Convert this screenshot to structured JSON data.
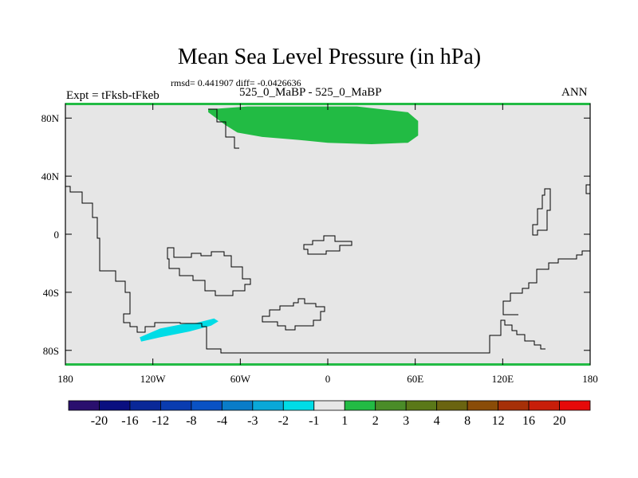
{
  "header": {
    "title": "Mean Sea Level Pressure (in hPa)",
    "stats": "rmsd= 0.441907 diff= -0.0426636",
    "experiment": "Expt = tFksb-tFkeb",
    "subtitle": "525_0_MaBP - 525_0_MaBP",
    "period": "ANN"
  },
  "axes": {
    "x_ticks": [
      {
        "lon": -180,
        "label": "180"
      },
      {
        "lon": -120,
        "label": "120W"
      },
      {
        "lon": -60,
        "label": "60W"
      },
      {
        "lon": 0,
        "label": "0"
      },
      {
        "lon": 60,
        "label": "60E"
      },
      {
        "lon": 120,
        "label": "120E"
      },
      {
        "lon": 180,
        "label": "180"
      }
    ],
    "y_ticks": [
      {
        "lat": 80,
        "label": "80N"
      },
      {
        "lat": 40,
        "label": "40N"
      },
      {
        "lat": 0,
        "label": "0"
      },
      {
        "lat": -40,
        "label": "40S"
      },
      {
        "lat": -80,
        "label": "80S"
      }
    ],
    "lon_range": [
      -180,
      180
    ],
    "lat_range": [
      -90,
      90
    ]
  },
  "colorbar": {
    "labels": [
      "-20",
      "-16",
      "-12",
      "-8",
      "-4",
      "-3",
      "-2",
      "-1",
      "1",
      "2",
      "3",
      "4",
      "8",
      "12",
      "16",
      "20"
    ],
    "colors": [
      "#2a0f6e",
      "#0a0f80",
      "#0a2898",
      "#0a3cb0",
      "#0a52c4",
      "#0a7cc8",
      "#0aa8d8",
      "#00dce6",
      "#e6e6e6",
      "#22bb44",
      "#4a8c28",
      "#5a7818",
      "#6a6410",
      "#8a4c08",
      "#a63008",
      "#c81e0a",
      "#e60a0a"
    ]
  },
  "chart_data": {
    "type": "map",
    "variable": "Mean Sea Level Pressure difference (hPa)",
    "background_level": "-1 to 1",
    "anomalies": [
      {
        "name": "positive-anomaly",
        "bin": "1 to 2",
        "color": "#22bb44",
        "region": "Arctic, approx. 100W-60E, 65N-87N",
        "polygon": [
          [
            -82,
            86
          ],
          [
            -55,
            88
          ],
          [
            20,
            88
          ],
          [
            55,
            84
          ],
          [
            62,
            78
          ],
          [
            62,
            68
          ],
          [
            55,
            63
          ],
          [
            30,
            62
          ],
          [
            0,
            63
          ],
          [
            -20,
            65
          ],
          [
            -45,
            67
          ],
          [
            -62,
            70
          ],
          [
            -70,
            75
          ],
          [
            -82,
            84
          ]
        ]
      },
      {
        "name": "negative-anomaly",
        "bin": "-2 to -1",
        "color": "#00dce6",
        "region": "South Pacific, approx. 130W-75W, 57S-73S",
        "polygon": [
          [
            -129,
            -71
          ],
          [
            -115,
            -65
          ],
          [
            -100,
            -62
          ],
          [
            -90,
            -61
          ],
          [
            -78,
            -58
          ],
          [
            -75,
            -60
          ],
          [
            -80,
            -63
          ],
          [
            -95,
            -67
          ],
          [
            -115,
            -71
          ],
          [
            -128,
            -74
          ]
        ]
      }
    ]
  }
}
